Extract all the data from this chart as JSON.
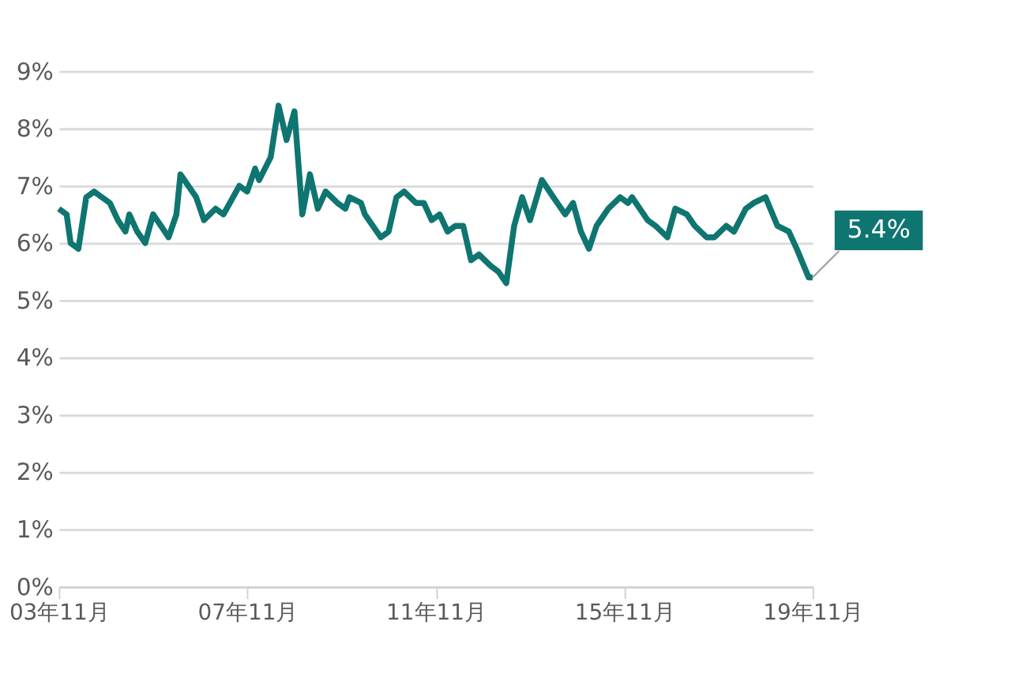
{
  "chart_data": {
    "type": "line",
    "x": [
      "2003-11",
      "2004-01",
      "2004-02",
      "2004-04",
      "2004-06",
      "2004-08",
      "2004-10",
      "2004-12",
      "2005-02",
      "2005-04",
      "2005-05",
      "2005-07",
      "2005-09",
      "2005-11",
      "2006-01",
      "2006-03",
      "2006-05",
      "2006-06",
      "2006-10",
      "2006-12",
      "2007-03",
      "2007-05",
      "2007-09",
      "2007-11",
      "2008-01",
      "2008-02",
      "2008-05",
      "2008-07",
      "2008-09",
      "2008-11",
      "2009-01",
      "2009-03",
      "2009-05",
      "2009-07",
      "2009-10",
      "2009-12",
      "2010-01",
      "2010-04",
      "2010-05",
      "2010-09",
      "2010-11",
      "2011-01",
      "2011-03",
      "2011-06",
      "2011-08",
      "2011-10",
      "2011-12",
      "2012-02",
      "2012-04",
      "2012-06",
      "2012-08",
      "2012-10",
      "2013-01",
      "2013-03",
      "2013-05",
      "2013-07",
      "2013-09",
      "2013-11",
      "2014-02",
      "2014-05",
      "2014-08",
      "2014-10",
      "2014-12",
      "2015-02",
      "2015-04",
      "2015-07",
      "2015-10",
      "2015-12",
      "2016-01",
      "2016-05",
      "2016-07",
      "2016-10",
      "2016-12",
      "2017-03",
      "2017-05",
      "2017-08",
      "2017-10",
      "2018-01",
      "2018-03",
      "2018-06",
      "2018-08",
      "2018-11",
      "2019-02",
      "2019-05",
      "2019-07",
      "2019-10",
      "2019-11"
    ],
    "series": [
      {
        "color": "#0f7570",
        "values": [
          6.6,
          6.5,
          6.0,
          5.9,
          6.8,
          6.9,
          6.8,
          6.7,
          6.4,
          6.2,
          6.5,
          6.2,
          6.0,
          6.5,
          6.3,
          6.1,
          6.5,
          7.2,
          6.8,
          6.4,
          6.6,
          6.5,
          7.0,
          6.9,
          7.3,
          7.1,
          7.5,
          8.4,
          7.8,
          8.3,
          6.5,
          7.2,
          6.6,
          6.9,
          6.7,
          6.6,
          6.8,
          6.7,
          6.5,
          6.1,
          6.2,
          6.8,
          6.9,
          6.7,
          6.7,
          6.4,
          6.5,
          6.2,
          6.3,
          6.3,
          5.7,
          5.8,
          5.6,
          5.5,
          5.3,
          6.3,
          6.8,
          6.4,
          7.1,
          6.8,
          6.5,
          6.7,
          6.2,
          5.9,
          6.3,
          6.6,
          6.8,
          6.7,
          6.8,
          6.4,
          6.3,
          6.1,
          6.6,
          6.5,
          6.3,
          6.1,
          6.1,
          6.3,
          6.2,
          6.6,
          6.7,
          6.8,
          6.3,
          6.2,
          5.9,
          5.4,
          5.4
        ]
      }
    ],
    "xlim": [
      "2003-11",
      "2019-11"
    ],
    "xticks": [
      {
        "value": "2003-11",
        "label": "03年11月"
      },
      {
        "value": "2007-11",
        "label": "07年11月"
      },
      {
        "value": "2011-11",
        "label": "11年11月"
      },
      {
        "value": "2015-11",
        "label": "15年11月"
      },
      {
        "value": "2019-11",
        "label": "19年11月"
      }
    ],
    "ylim": [
      0,
      9
    ],
    "yticks": [
      {
        "value": 0,
        "label": "0%"
      },
      {
        "value": 1,
        "label": "1%"
      },
      {
        "value": 2,
        "label": "2%"
      },
      {
        "value": 3,
        "label": "3%"
      },
      {
        "value": 4,
        "label": "4%"
      },
      {
        "value": 5,
        "label": "5%"
      },
      {
        "value": 6,
        "label": "6%"
      },
      {
        "value": 7,
        "label": "7%"
      },
      {
        "value": 8,
        "label": "8%"
      },
      {
        "value": 9,
        "label": "9%"
      }
    ],
    "grid": "y",
    "line_style": "solid",
    "annotations": [
      {
        "text": "5.4%",
        "x": "2019-11",
        "y": 5.4
      }
    ]
  }
}
